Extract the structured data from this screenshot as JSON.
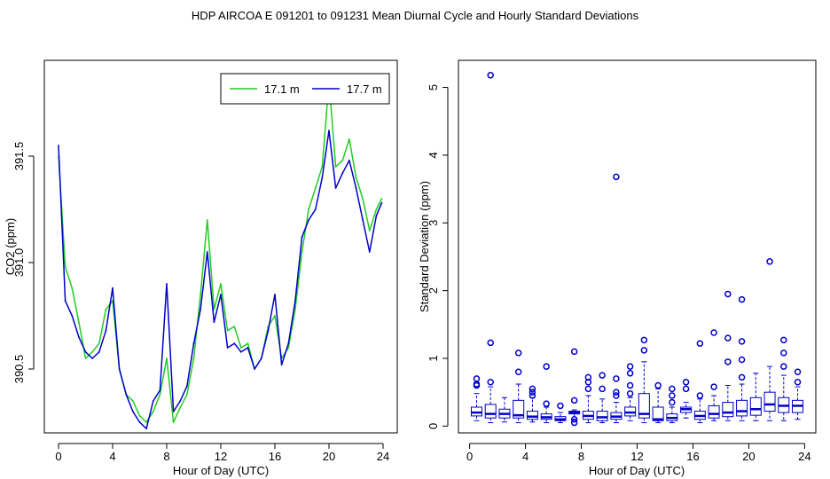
{
  "title": "HDP   AIRCOA E   091201 to 091231   Mean Diurnal Cycle and Hourly Standard Deviations",
  "colors": {
    "series1": "#22cc22",
    "series2": "#0000cc",
    "box": "#0000cc",
    "axis": "#000000"
  },
  "chart_data": [
    {
      "type": "line",
      "title": "",
      "xlabel": "Hour of Day (UTC)",
      "ylabel": "CO2 (ppm)",
      "xlim": [
        0,
        24
      ],
      "ylim": [
        390.2,
        391.95
      ],
      "xticks": [
        0,
        4,
        8,
        12,
        16,
        20,
        24
      ],
      "xtick_labels": [
        "0",
        "4",
        "8",
        "12",
        "16",
        "20",
        "24"
      ],
      "yticks": [
        390.5,
        391.0,
        391.5
      ],
      "ytick_labels": [
        "390.5",
        "391.0",
        "391.5"
      ],
      "legend_position": "top-right",
      "legend_labels": [
        "17.1 m",
        "17.7 m"
      ],
      "series": [
        {
          "name": "17.1 m",
          "x": [
            0,
            0.5,
            1,
            1.5,
            2,
            2.5,
            3,
            3.5,
            4,
            4.5,
            5,
            5.5,
            6,
            6.5,
            7,
            7.5,
            8,
            8.5,
            9,
            9.5,
            10,
            10.5,
            11,
            11.5,
            12,
            12.5,
            13,
            13.5,
            14,
            14.5,
            15,
            15.5,
            16,
            16.5,
            17,
            17.5,
            18,
            18.5,
            19,
            19.5,
            20,
            20.5,
            21,
            21.5,
            22,
            22.5,
            23,
            23.5,
            23.9
          ],
          "values": [
            391.5,
            390.98,
            390.88,
            390.72,
            390.55,
            390.58,
            390.62,
            390.78,
            390.82,
            390.5,
            390.38,
            390.35,
            390.28,
            390.25,
            390.3,
            390.38,
            390.55,
            390.25,
            390.32,
            390.38,
            390.55,
            390.85,
            391.2,
            390.78,
            390.9,
            390.68,
            390.7,
            390.6,
            390.62,
            390.5,
            390.55,
            390.7,
            390.75,
            390.55,
            390.6,
            390.78,
            391.05,
            391.25,
            391.35,
            391.45,
            391.85,
            391.45,
            391.48,
            391.58,
            391.4,
            391.3,
            391.15,
            391.25,
            391.3
          ]
        },
        {
          "name": "17.7 m",
          "x": [
            0,
            0.5,
            1,
            1.5,
            2,
            2.5,
            3,
            3.5,
            4,
            4.5,
            5,
            5.5,
            6,
            6.5,
            7,
            7.5,
            8,
            8.5,
            9,
            9.5,
            10,
            10.5,
            11,
            11.5,
            12,
            12.5,
            13,
            13.5,
            14,
            14.5,
            15,
            15.5,
            16,
            16.5,
            17,
            17.5,
            18,
            18.5,
            19,
            19.5,
            20,
            20.5,
            21,
            21.5,
            22,
            22.5,
            23,
            23.5,
            23.9
          ],
          "values": [
            391.55,
            390.82,
            390.75,
            390.65,
            390.58,
            390.55,
            390.58,
            390.68,
            390.88,
            390.5,
            390.38,
            390.3,
            390.25,
            390.22,
            390.35,
            390.4,
            390.9,
            390.3,
            390.35,
            390.42,
            390.62,
            390.78,
            391.05,
            390.72,
            390.85,
            390.6,
            390.62,
            390.58,
            390.6,
            390.5,
            390.55,
            390.68,
            390.85,
            390.52,
            390.62,
            390.82,
            391.12,
            391.2,
            391.25,
            391.4,
            391.62,
            391.35,
            391.42,
            391.48,
            391.35,
            391.2,
            391.05,
            391.22,
            391.28
          ]
        }
      ]
    },
    {
      "type": "box",
      "title": "",
      "xlabel": "Hour of Day (UTC)",
      "ylabel": "Standard Deviation (ppm)",
      "xlim": [
        -0.8,
        24.8
      ],
      "ylim": [
        -0.1,
        5.4
      ],
      "xticks": [
        0,
        4,
        8,
        12,
        16,
        20,
        24
      ],
      "xtick_labels": [
        "0",
        "4",
        "8",
        "12",
        "16",
        "20",
        "24"
      ],
      "yticks": [
        0,
        1,
        2,
        3,
        4,
        5
      ],
      "ytick_labels": [
        "0",
        "1",
        "2",
        "3",
        "4",
        "5"
      ],
      "boxes": [
        {
          "hour": 0.5,
          "min": 0.08,
          "q1": 0.15,
          "median": 0.2,
          "q3": 0.28,
          "max": 0.48,
          "outliers": [
            0.6,
            0.62,
            0.7
          ]
        },
        {
          "hour": 1.5,
          "min": 0.05,
          "q1": 0.12,
          "median": 0.18,
          "q3": 0.32,
          "max": 0.58,
          "outliers": [
            0.65,
            1.23,
            5.18
          ]
        },
        {
          "hour": 2.5,
          "min": 0.06,
          "q1": 0.12,
          "median": 0.18,
          "q3": 0.25,
          "max": 0.42,
          "outliers": []
        },
        {
          "hour": 3.5,
          "min": 0.05,
          "q1": 0.12,
          "median": 0.16,
          "q3": 0.38,
          "max": 0.62,
          "outliers": [
            0.8,
            1.08
          ]
        },
        {
          "hour": 4.5,
          "min": 0.06,
          "q1": 0.1,
          "median": 0.14,
          "q3": 0.22,
          "max": 0.42,
          "outliers": [
            0.45,
            0.5,
            0.55
          ]
        },
        {
          "hour": 5.5,
          "min": 0.05,
          "q1": 0.1,
          "median": 0.13,
          "q3": 0.18,
          "max": 0.28,
          "outliers": [
            0.33,
            0.88
          ]
        },
        {
          "hour": 6.5,
          "min": 0.05,
          "q1": 0.08,
          "median": 0.1,
          "q3": 0.14,
          "max": 0.2,
          "outliers": [
            0.3
          ]
        },
        {
          "hour": 7.5,
          "min": 0.1,
          "q1": 0.18,
          "median": 0.2,
          "q3": 0.22,
          "max": 0.24,
          "outliers": [
            0.05,
            0.1,
            0.38,
            1.1
          ]
        },
        {
          "hour": 8.5,
          "min": 0.05,
          "q1": 0.1,
          "median": 0.15,
          "q3": 0.22,
          "max": 0.45,
          "outliers": [
            0.55,
            0.65,
            0.72
          ]
        },
        {
          "hour": 9.5,
          "min": 0.05,
          "q1": 0.08,
          "median": 0.13,
          "q3": 0.22,
          "max": 0.4,
          "outliers": [
            0.55,
            0.75
          ]
        },
        {
          "hour": 10.5,
          "min": 0.05,
          "q1": 0.1,
          "median": 0.14,
          "q3": 0.2,
          "max": 0.35,
          "outliers": [
            0.45,
            0.5,
            0.7,
            3.68
          ]
        },
        {
          "hour": 11.5,
          "min": 0.08,
          "q1": 0.15,
          "median": 0.2,
          "q3": 0.28,
          "max": 0.42,
          "outliers": [
            0.48,
            0.6,
            0.78,
            0.88
          ]
        },
        {
          "hour": 12.5,
          "min": 0.05,
          "q1": 0.12,
          "median": 0.18,
          "q3": 0.48,
          "max": 0.95,
          "outliers": [
            1.12,
            1.27
          ]
        },
        {
          "hour": 13.5,
          "min": 0.05,
          "q1": 0.08,
          "median": 0.1,
          "q3": 0.28,
          "max": 0.55,
          "outliers": [
            0.6
          ]
        },
        {
          "hour": 14.5,
          "min": 0.05,
          "q1": 0.08,
          "median": 0.12,
          "q3": 0.18,
          "max": 0.28,
          "outliers": [
            0.35,
            0.45,
            0.55
          ]
        },
        {
          "hour": 15.5,
          "min": 0.12,
          "q1": 0.2,
          "median": 0.25,
          "q3": 0.28,
          "max": 0.35,
          "outliers": [
            0.55,
            0.65
          ]
        },
        {
          "hour": 16.5,
          "min": 0.05,
          "q1": 0.1,
          "median": 0.15,
          "q3": 0.22,
          "max": 0.4,
          "outliers": [
            0.45,
            1.22
          ]
        },
        {
          "hour": 17.5,
          "min": 0.08,
          "q1": 0.12,
          "median": 0.18,
          "q3": 0.3,
          "max": 0.45,
          "outliers": [
            0.58,
            1.38
          ]
        },
        {
          "hour": 18.5,
          "min": 0.08,
          "q1": 0.14,
          "median": 0.2,
          "q3": 0.35,
          "max": 0.6,
          "outliers": [
            0.95,
            1.3,
            1.95
          ]
        },
        {
          "hour": 19.5,
          "min": 0.08,
          "q1": 0.15,
          "median": 0.22,
          "q3": 0.38,
          "max": 0.62,
          "outliers": [
            0.72,
            0.98,
            1.25,
            1.87
          ]
        },
        {
          "hour": 20.5,
          "min": 0.08,
          "q1": 0.16,
          "median": 0.25,
          "q3": 0.42,
          "max": 0.78,
          "outliers": []
        },
        {
          "hour": 21.5,
          "min": 0.08,
          "q1": 0.22,
          "median": 0.32,
          "q3": 0.5,
          "max": 0.88,
          "outliers": [
            2.43
          ]
        },
        {
          "hour": 22.5,
          "min": 0.08,
          "q1": 0.2,
          "median": 0.3,
          "q3": 0.42,
          "max": 0.75,
          "outliers": [
            0.88,
            1.08,
            1.27
          ]
        },
        {
          "hour": 23.5,
          "min": 0.1,
          "q1": 0.2,
          "median": 0.3,
          "q3": 0.38,
          "max": 0.58,
          "outliers": [
            0.65,
            0.8
          ]
        }
      ]
    }
  ]
}
